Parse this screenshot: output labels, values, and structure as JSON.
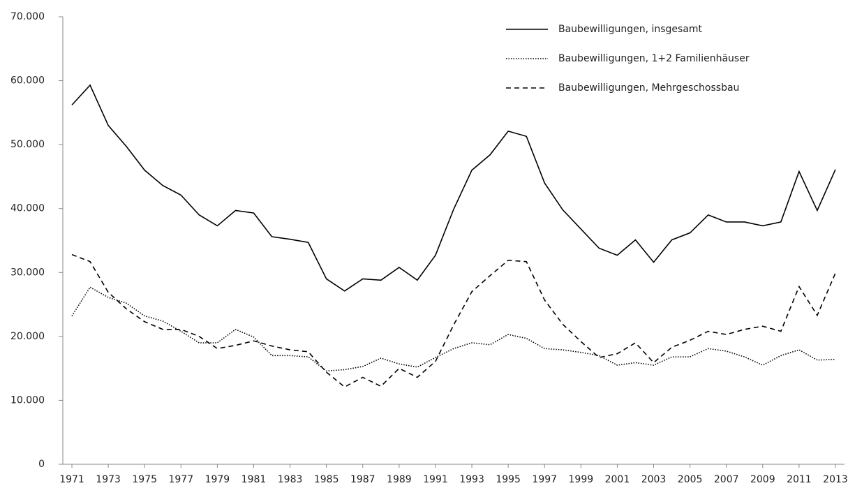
{
  "chart_data": {
    "type": "line",
    "x": [
      1971,
      1972,
      1973,
      1974,
      1975,
      1976,
      1977,
      1978,
      1979,
      1980,
      1981,
      1982,
      1983,
      1984,
      1985,
      1986,
      1987,
      1988,
      1989,
      1990,
      1991,
      1992,
      1993,
      1994,
      1995,
      1996,
      1997,
      1998,
      1999,
      2000,
      2001,
      2002,
      2003,
      2004,
      2005,
      2006,
      2007,
      2008,
      2009,
      2010,
      2011,
      2012,
      2013
    ],
    "xlim": [
      1970.5,
      2013.5
    ],
    "xticks": [
      1971,
      1973,
      1975,
      1977,
      1979,
      1981,
      1983,
      1985,
      1987,
      1989,
      1991,
      1993,
      1995,
      1997,
      1999,
      2001,
      2003,
      2005,
      2007,
      2009,
      2011,
      2013
    ],
    "ylim": [
      0,
      70000
    ],
    "yticks": [
      0,
      {
        "value": 10000,
        "label": "10.000"
      },
      {
        "value": 20000,
        "label": "20.000"
      },
      {
        "value": 30000,
        "label": "30.000"
      },
      {
        "value": 40000,
        "label": "40.000"
      },
      {
        "value": 50000,
        "label": "50.000"
      },
      {
        "value": 60000,
        "label": "60.000"
      },
      {
        "value": 70000,
        "label": "70.000"
      }
    ],
    "grid": false,
    "legend": "top-right",
    "series": [
      {
        "name": "Baubewilligungen, insgesamt",
        "color": "#000000",
        "style": "solid",
        "values": [
          56200,
          59300,
          53000,
          49700,
          46000,
          43600,
          42100,
          39000,
          37300,
          39700,
          39300,
          35600,
          35200,
          34700,
          29000,
          27100,
          29000,
          28800,
          30800,
          28800,
          32700,
          39900,
          46000,
          48400,
          52100,
          51300,
          44000,
          39800,
          36800,
          33800,
          32700,
          35100,
          31600,
          35100,
          36200,
          39000,
          37900,
          37900,
          37300,
          37900,
          45800,
          39700,
          46100
        ]
      },
      {
        "name": "Baubewilligungen, 1+2 Familienhäuser",
        "color": "#000000",
        "style": "dotted",
        "values": [
          23200,
          27700,
          26100,
          25200,
          23200,
          22400,
          20800,
          19000,
          19000,
          21100,
          19900,
          17000,
          17000,
          16800,
          14600,
          14800,
          15300,
          16600,
          15700,
          15200,
          16700,
          18100,
          19000,
          18700,
          20300,
          19700,
          18100,
          17900,
          17500,
          17000,
          15500,
          15900,
          15500,
          16800,
          16800,
          18100,
          17700,
          16800,
          15500,
          17000,
          17900,
          16300,
          16400
        ]
      },
      {
        "name": "Baubewilligungen, Mehrgeschossbau",
        "color": "#000000",
        "style": "dashed",
        "values": [
          32800,
          31700,
          26900,
          24300,
          22300,
          21100,
          21100,
          20000,
          18100,
          18600,
          19300,
          18500,
          17900,
          17600,
          14400,
          12100,
          13600,
          12200,
          15000,
          13600,
          16100,
          21800,
          27000,
          29500,
          31900,
          31700,
          25700,
          21900,
          19200,
          16700,
          17300,
          19000,
          15900,
          18300,
          19400,
          20800,
          20300,
          21100,
          21600,
          20800,
          27800,
          23300,
          29900
        ]
      }
    ]
  }
}
